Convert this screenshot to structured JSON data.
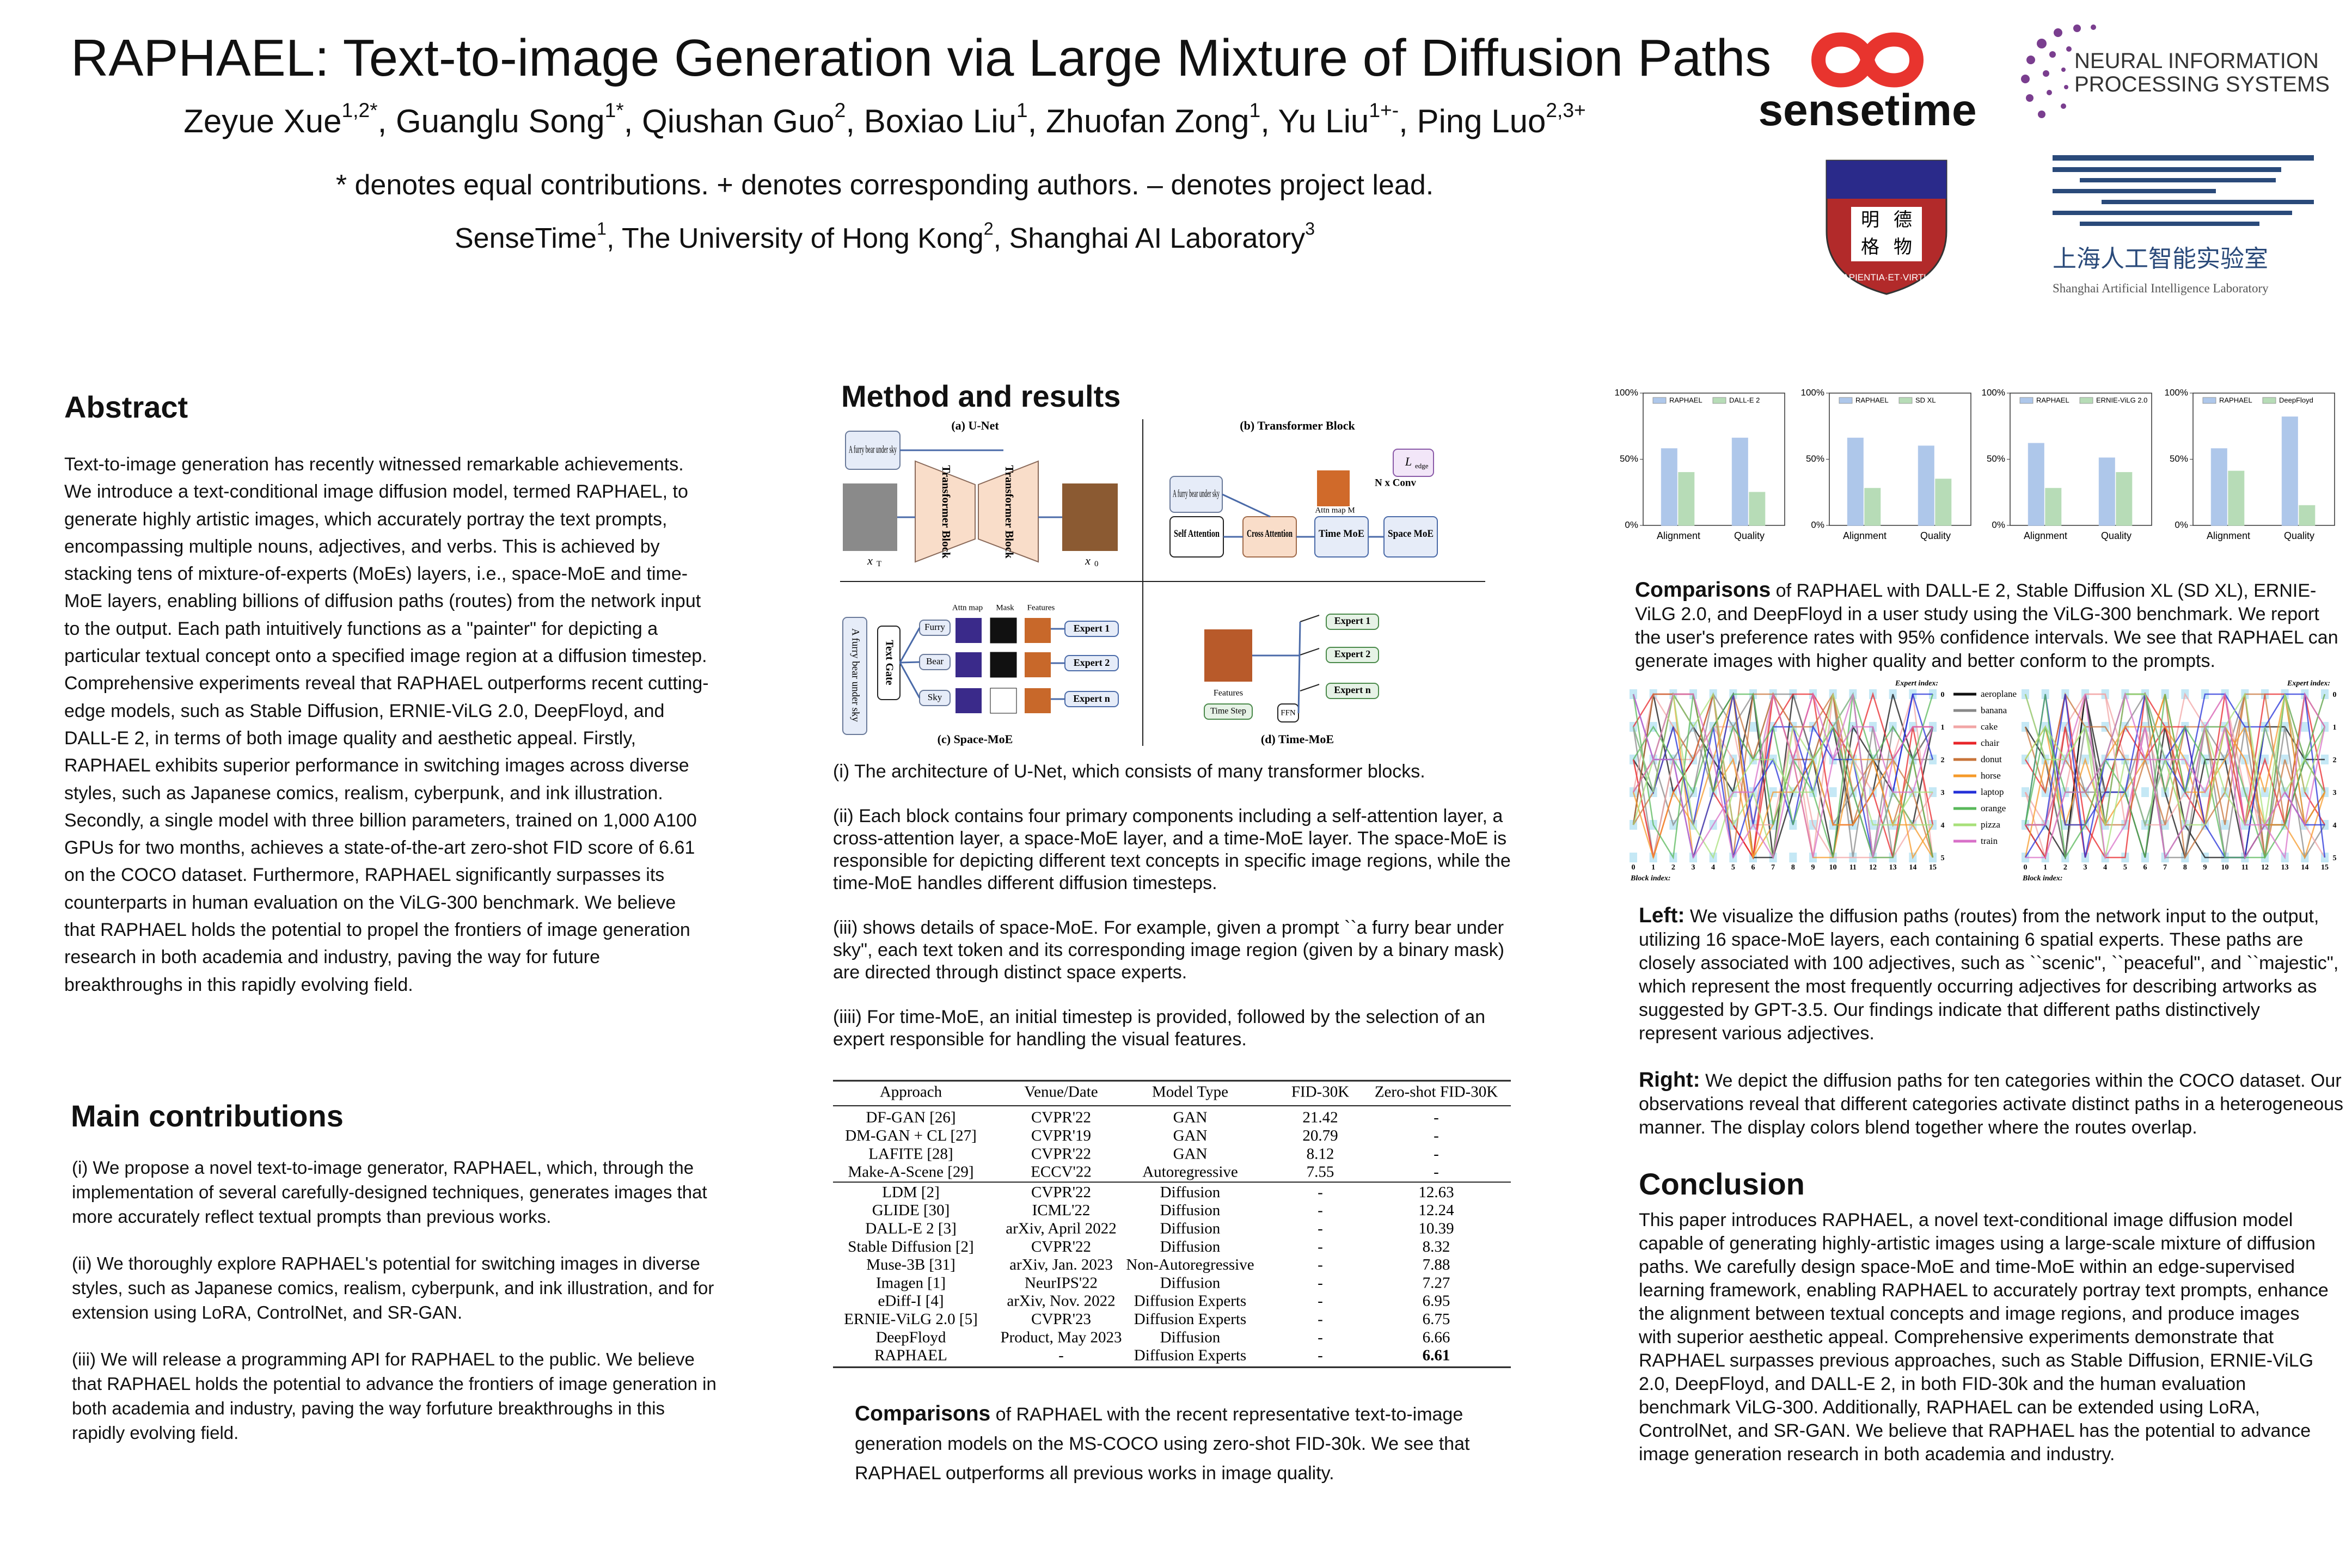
{
  "header": {
    "title": "RAPHAEL: Text-to-image Generation via Large Mixture of Diffusion Paths",
    "authors": [
      {
        "name": "Zeyue Xue",
        "sup": "1,2*",
        "sep": ", "
      },
      {
        "name": "Guanglu Song",
        "sup": "1*",
        "sep": ", "
      },
      {
        "name": "Qiushan Guo",
        "sup": "2",
        "sep": ", "
      },
      {
        "name": "Boxiao Liu",
        "sup": "1",
        "sep": ", "
      },
      {
        "name": "Zhuofan Zong",
        "sup": "1",
        "sep": ", "
      },
      {
        "name": "Yu Liu",
        "sup": "1+-",
        "sep": ", "
      },
      {
        "name": "Ping Luo",
        "sup": "2,3+"
      }
    ],
    "note": "* denotes equal contributions. + denotes corresponding authors. – denotes project lead.",
    "affiliations": [
      {
        "name": "SenseTime",
        "sup": "1",
        "sep": ", "
      },
      {
        "name": "The University of Hong Kong",
        "sup": "2",
        "sep": ", "
      },
      {
        "name": "Shanghai AI Laboratory",
        "sup": "3"
      }
    ]
  },
  "logos": {
    "sensetime": "sensetime",
    "neurips": [
      "NEURAL INFORMATION",
      "PROCESSING SYSTEMS"
    ],
    "hku_motto": "SAPIENTIA·ET·VIRTUS",
    "hku_chars": [
      "明",
      "德",
      "格",
      "物"
    ],
    "shlab_cn": "上海人工智能实验室",
    "shlab_en": "Shanghai Artificial Intelligence Laboratory"
  },
  "abstract": {
    "heading": "Abstract",
    "text": "Text-to-image generation has recently witnessed remarkable achievements. We introduce a text-conditional image diffusion model, termed RAPHAEL, to generate highly artistic images, which accurately portray the text prompts, encompassing multiple nouns, adjectives, and verbs. This is achieved by stacking tens of mixture-of-experts (MoEs) layers, i.e., space-MoE and time-MoE layers, enabling billions of diffusion paths (routes) from the network input to the output. Each path intuitively functions as a \"painter\" for depicting a particular textual concept onto a specified image region at a diffusion timestep. Comprehensive experiments reveal that RAPHAEL outperforms recent cutting-edge models, such as Stable Diffusion, ERNIE-ViLG 2.0, DeepFloyd, and DALL-E 2, in terms of both image quality and aesthetic appeal. Firstly, RAPHAEL exhibits superior performance in switching images across diverse styles, such as Japanese comics, realism, cyberpunk, and ink illustration. Secondly, a single model with three billion parameters, trained on 1,000 A100 GPUs for two months, achieves a state-of-the-art zero-shot FID score of 6.61 on the COCO dataset. Furthermore, RAPHAEL significantly surpasses its counterparts in human evaluation on the ViLG-300 benchmark. We believe that RAPHAEL holds the potential to propel the frontiers of image generation research in both academia and industry, paving the way for future breakthroughs in this rapidly evolving field."
  },
  "contributions": {
    "heading": "Main contributions",
    "items": [
      "(i) We propose a novel  text-to-image generator, RAPHAEL, which, through the implementation of several carefully-designed techniques, generates images that more accurately reflect textual prompts than previous works.",
      "(ii) We thoroughly explore RAPHAEL's potential for switching images in diverse styles, such as Japanese comics, realism, cyberpunk, and ink illustration, and for extension using LoRA, ControlNet, and SR-GAN.",
      "(iii) We will release a programming  API for RAPHAEL to the public. We believe that RAPHAEL holds the potential to advance the frontiers of image generation in both academia and industry, paving the way forfuture breakthroughs in this rapidly evolving field."
    ]
  },
  "method": {
    "heading": "Method and results",
    "figure": {
      "panel_a": "(a) U-Net",
      "panel_b": "(b) Transformer Block",
      "panel_c": "(c) Space-MoE",
      "panel_d": "(d) Time-MoE",
      "prompt": "A furry bear under sky",
      "transformer_block": "Transformer Block",
      "x": "x",
      "x_start": "T",
      "x_end": "0",
      "self_attention": "Self Attention",
      "cross_attention": "Cross Attention",
      "time_moe": "Time MoE",
      "space_moe": "Space MoE",
      "n_conv": "N x Conv",
      "l_edge": "L",
      "l_edge_sub": "edge",
      "attn_map_m": "Attn map M",
      "text_gate": "Text Gate",
      "tokens": [
        "Furry",
        "Bear",
        "Sky"
      ],
      "attn_map": "Attn map",
      "mask": "Mask",
      "features": "Features",
      "experts": [
        "Expert 1",
        "Expert 2",
        "Expert n"
      ],
      "time_step": "Time Step",
      "ffn": "FFN"
    },
    "captions": [
      "(i) The architecture of U-Net, which consists of many transformer blocks.",
      "(ii) Each block contains four primary components including a self-attention layer, a cross-attention layer, a space-MoE layer, and a time-MoE layer. The space-MoE is responsible for depicting different text concepts in specific image regions, while the time-MoE handles different diffusion timesteps.",
      "(iii) shows details of space-MoE. For example, given a prompt ``a furry bear under sky\", each text token and its corresponding image region (given by a binary mask) are directed through distinct space experts.",
      "(iiii) For time-MoE, an initial timestep is provided, followed by the selection of an expert responsible for handling the visual features."
    ]
  },
  "table": {
    "header": [
      "Approach",
      "Venue/Date",
      "Model Type",
      "FID-30K",
      "Zero-shot FID-30K"
    ],
    "groups": [
      [
        [
          "DF-GAN [26]",
          "CVPR'22",
          "GAN",
          "21.42",
          "-"
        ],
        [
          "DM-GAN + CL [27]",
          "CVPR'19",
          "GAN",
          "20.79",
          "-"
        ],
        [
          "LAFITE [28]",
          "CVPR'22",
          "GAN",
          "8.12",
          "-"
        ],
        [
          "Make-A-Scene [29]",
          "ECCV'22",
          "Autoregressive",
          "7.55",
          "-"
        ]
      ],
      [
        [
          "LDM [2]",
          "CVPR'22",
          "Diffusion",
          "-",
          "12.63"
        ],
        [
          "GLIDE [30]",
          "ICML'22",
          "Diffusion",
          "-",
          "12.24"
        ],
        [
          "DALL-E 2 [3]",
          "arXiv, April 2022",
          "Diffusion",
          "-",
          "10.39"
        ],
        [
          "Stable Diffusion [2]",
          "CVPR'22",
          "Diffusion",
          "-",
          "8.32"
        ],
        [
          "Muse-3B [31]",
          "arXiv, Jan. 2023",
          "Non-Autoregressive",
          "-",
          "7.88"
        ],
        [
          "Imagen [1]",
          "NeurIPS'22",
          "Diffusion",
          "-",
          "7.27"
        ],
        [
          "eDiff-I [4]",
          "arXiv, Nov. 2022",
          "Diffusion Experts",
          "-",
          "6.95"
        ],
        [
          "ERNIE-ViLG 2.0 [5]",
          "CVPR'23",
          "Diffusion Experts",
          "-",
          "6.75"
        ],
        [
          "DeepFloyd",
          "Product, May 2023",
          "Diffusion",
          "-",
          "6.66"
        ],
        [
          "RAPHAEL",
          "-",
          "Diffusion Experts",
          "-",
          "6.61"
        ]
      ]
    ],
    "caption_lead": "Comparisons",
    "caption": " of RAPHAEL with the recent representative text-to-image generation models on the MS-COCO using zero-shot FID-30k. We see that RAPHAEL outperforms all previous works in image quality."
  },
  "chart_data": [
    {
      "type": "bar",
      "categories": [
        "Alignment",
        "Quality"
      ],
      "ylim": [
        0,
        100
      ],
      "yticks": [
        {
          "value": 0,
          "label": "0%"
        },
        {
          "value": 50,
          "label": "50%"
        },
        {
          "value": 100,
          "label": "100%"
        }
      ],
      "series": [
        {
          "name": "RAPHAEL",
          "color": "#aec7ea",
          "values": [
            58,
            66
          ]
        },
        {
          "name": "DALL-E 2",
          "color": "#b7dcb7",
          "values": [
            40,
            25
          ]
        }
      ]
    },
    {
      "type": "bar",
      "categories": [
        "Alignment",
        "Quality"
      ],
      "ylim": [
        0,
        100
      ],
      "yticks": [
        {
          "value": 0,
          "label": "0%"
        },
        {
          "value": 50,
          "label": "50%"
        },
        {
          "value": 100,
          "label": "100%"
        }
      ],
      "series": [
        {
          "name": "RAPHAEL",
          "color": "#aec7ea",
          "values": [
            66,
            60
          ]
        },
        {
          "name": "SD XL",
          "color": "#b7dcb7",
          "values": [
            28,
            35
          ]
        }
      ]
    },
    {
      "type": "bar",
      "categories": [
        "Alignment",
        "Quality"
      ],
      "ylim": [
        0,
        100
      ],
      "yticks": [
        {
          "value": 0,
          "label": "0%"
        },
        {
          "value": 50,
          "label": "50%"
        },
        {
          "value": 100,
          "label": "100%"
        }
      ],
      "series": [
        {
          "name": "RAPHAEL",
          "color": "#aec7ea",
          "values": [
            62,
            51
          ]
        },
        {
          "name": "ERNIE-ViLG 2.0",
          "color": "#b7dcb7",
          "values": [
            28,
            40
          ]
        }
      ]
    },
    {
      "type": "bar",
      "categories": [
        "Alignment",
        "Quality"
      ],
      "ylim": [
        0,
        100
      ],
      "yticks": [
        {
          "value": 0,
          "label": "0%"
        },
        {
          "value": 50,
          "label": "50%"
        },
        {
          "value": 100,
          "label": "100%"
        }
      ],
      "series": [
        {
          "name": "RAPHAEL",
          "color": "#aec7ea",
          "values": [
            58,
            82
          ]
        },
        {
          "name": "DeepFloyd",
          "color": "#b7dcb7",
          "values": [
            41,
            15
          ]
        }
      ]
    }
  ],
  "comparisons": {
    "lead": "Comparisons",
    "text": " of RAPHAEL with DALL-E 2, Stable Diffusion XL (SD XL), ERNIE-ViLG 2.0, and DeepFloyd in a user study using the ViLG-300 benchmark. We report the user's preference rates with 95% confidence intervals. We see that RAPHAEL can generate images with higher quality and better conform to the prompts."
  },
  "paths_figure": {
    "expert_label": "Expert index:",
    "block_label": "Block index:",
    "block_ticks": [
      "0",
      "1",
      "2",
      "3",
      "4",
      "5",
      "6",
      "7",
      "8",
      "9",
      "10",
      "11",
      "12",
      "13",
      "14",
      "15"
    ],
    "expert_ticks": [
      "0",
      "1",
      "2",
      "3",
      "4",
      "5"
    ],
    "legend": [
      {
        "name": "aeroplane",
        "color": "#111111"
      },
      {
        "name": "banana",
        "color": "#888888"
      },
      {
        "name": "cake",
        "color": "#f2a6a6"
      },
      {
        "name": "chair",
        "color": "#e8262a"
      },
      {
        "name": "donut",
        "color": "#c8743a"
      },
      {
        "name": "horse",
        "color": "#f59a2a"
      },
      {
        "name": "laptop",
        "color": "#2430d8"
      },
      {
        "name": "orange",
        "color": "#58b85a"
      },
      {
        "name": "pizza",
        "color": "#a8e07a"
      },
      {
        "name": "train",
        "color": "#d870c8"
      }
    ]
  },
  "left_note": {
    "lead": "Left:",
    "text": " We visualize the diffusion paths (routes) from the network input to the output, utilizing 16 space-MoE layers, each containing  6 spatial experts. These paths are closely associated with 100 adjectives, such as ``scenic\", ``peaceful\", and ``majestic\", which represent the most frequently occurring adjectives for describing artworks as suggested by GPT-3.5. Our findings indicate that different paths distinctively represent various adjectives."
  },
  "right_note": {
    "lead": "Right:",
    "text": " We depict the diffusion paths for ten categories within the COCO dataset. Our observations reveal that different categories activate distinct paths in a heterogeneous manner. The display colors blend together where the routes overlap."
  },
  "conclusion": {
    "heading": "Conclusion",
    "text": "This paper introduces RAPHAEL, a novel text-conditional image diffusion model capable of generating highly-artistic images using a large-scale mixture of diffusion paths. We carefully design  space-MoE and time-MoE within an edge-supervised learning framework, enabling RAPHAEL to accurately portray text prompts, enhance the alignment between textual concepts and image regions, and produce images with superior aesthetic appeal. Comprehensive experiments demonstrate that RAPHAEL surpasses previous approaches, such as Stable Diffusion, ERNIE-ViLG 2.0, DeepFloyd, and DALL-E 2, in both FID-30k and the human evaluation benchmark ViLG-300. Additionally, RAPHAEL can be extended using LoRA, ControlNet, and SR-GAN. We believe that RAPHAEL has the potential to advance image generation research in both academia and industry."
  }
}
